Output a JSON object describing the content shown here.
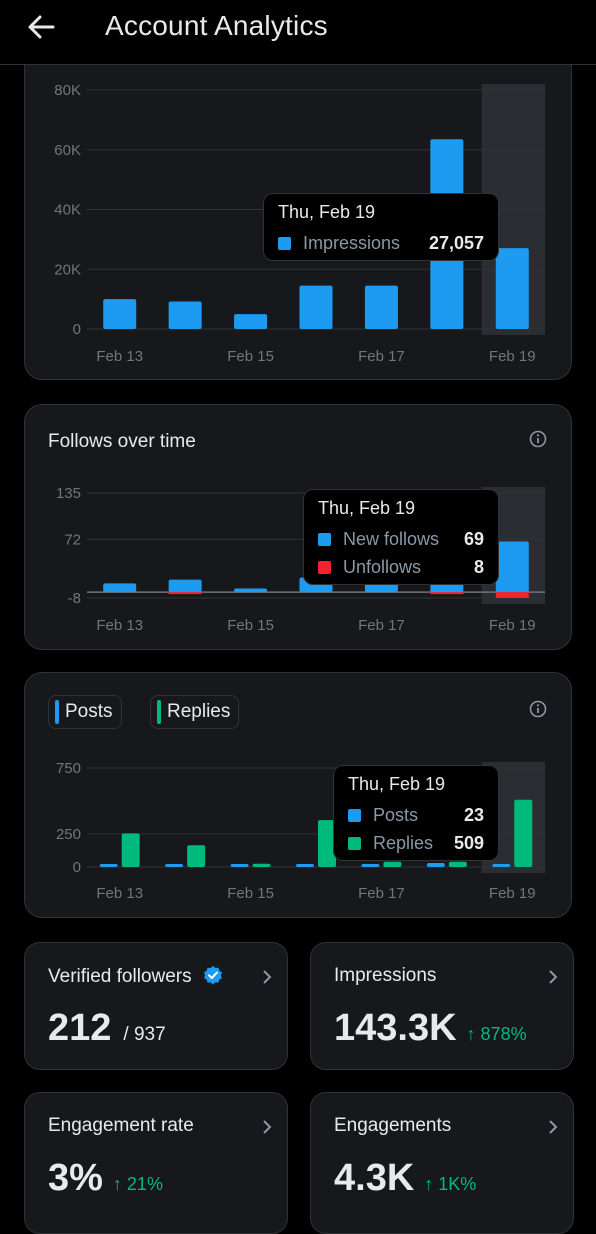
{
  "header": {
    "title": "Account Analytics"
  },
  "impressions_chart": {
    "tooltip": {
      "date": "Thu, Feb 19",
      "label": "Impressions",
      "value": "27,057"
    },
    "colors": {
      "impressions": "#1d9bf0"
    }
  },
  "follows_chart": {
    "title": "Follows over time",
    "tooltip": {
      "date": "Thu, Feb 19",
      "rows": [
        {
          "label": "New follows",
          "value": "69"
        },
        {
          "label": "Unfollows",
          "value": "8"
        }
      ]
    },
    "colors": {
      "new_follows": "#1d9bf0",
      "unfollows": "#f4212e"
    }
  },
  "posts_chart": {
    "toggles": [
      {
        "label": "Posts",
        "color": "#1d9bf0"
      },
      {
        "label": "Replies",
        "color": "#00ba7c"
      }
    ],
    "tooltip": {
      "date": "Thu, Feb 19",
      "rows": [
        {
          "label": "Posts",
          "value": "23"
        },
        {
          "label": "Replies",
          "value": "509"
        }
      ]
    }
  },
  "stats": {
    "verified_followers": {
      "label": "Verified followers",
      "value": "212",
      "total": "/ 937"
    },
    "impressions": {
      "label": "Impressions",
      "value": "143.3K",
      "change": "↑ 878%"
    },
    "engagement_rate": {
      "label": "Engagement rate",
      "value": "3%",
      "change": "↑ 21%"
    },
    "engagements": {
      "label": "Engagements",
      "value": "4.3K",
      "change": "↑ 1K%"
    }
  },
  "chart_data": [
    {
      "type": "bar",
      "categories": [
        "Feb 13",
        "Feb 14",
        "Feb 15",
        "Feb 16",
        "Feb 17",
        "Feb 18",
        "Feb 19"
      ],
      "x_tick_labels": [
        "Feb 13",
        "Feb 15",
        "Feb 17",
        "Feb 19"
      ],
      "series": [
        {
          "name": "Impressions",
          "values": [
            10000,
            9200,
            5000,
            14500,
            14500,
            63500,
            27057
          ]
        }
      ],
      "y_ticks": [
        "80K",
        "60K",
        "40K",
        "20K",
        "0"
      ],
      "ylim": [
        0,
        80000
      ],
      "highlight": "Feb 19",
      "grid": true
    },
    {
      "type": "bar",
      "categories": [
        "Feb 13",
        "Feb 14",
        "Feb 15",
        "Feb 16",
        "Feb 17",
        "Feb 18",
        "Feb 19"
      ],
      "x_tick_labels": [
        "Feb 13",
        "Feb 15",
        "Feb 17",
        "Feb 19"
      ],
      "series": [
        {
          "name": "New follows",
          "values": [
            12,
            17,
            5,
            20,
            20,
            136,
            69
          ]
        },
        {
          "name": "Unfollows",
          "values": [
            0,
            -2,
            0,
            0,
            0,
            -2,
            -8
          ]
        }
      ],
      "y_ticks": [
        "135",
        "72",
        "-8"
      ],
      "ylim": [
        -8,
        135
      ],
      "highlight": "Feb 19",
      "grid": true
    },
    {
      "type": "bar",
      "categories": [
        "Feb 13",
        "Feb 14",
        "Feb 15",
        "Feb 16",
        "Feb 17",
        "Feb 18",
        "Feb 19"
      ],
      "x_tick_labels": [
        "Feb 13",
        "Feb 15",
        "Feb 17",
        "Feb 19"
      ],
      "series": [
        {
          "name": "Posts",
          "values": [
            15,
            10,
            3,
            20,
            15,
            30,
            23
          ]
        },
        {
          "name": "Replies",
          "values": [
            255,
            165,
            25,
            355,
            40,
            40,
            509
          ]
        }
      ],
      "y_ticks": [
        "750",
        "250",
        "0"
      ],
      "ylim": [
        0,
        750
      ],
      "highlight": "Feb 19",
      "grid": true
    }
  ]
}
